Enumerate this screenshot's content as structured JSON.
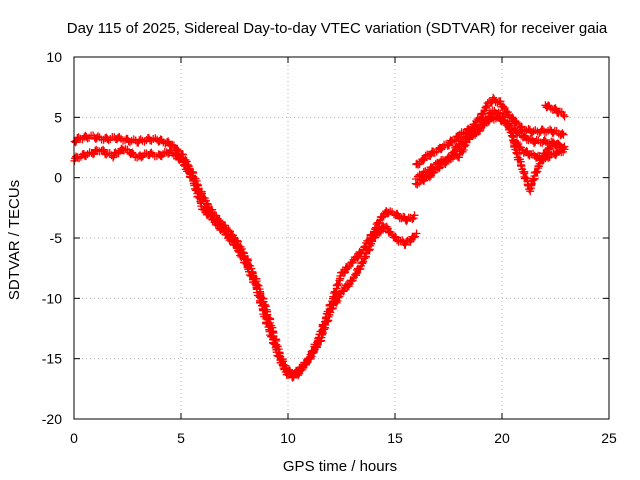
{
  "chart_data": {
    "type": "scatter",
    "title": "Day 115 of 2025, Sidereal Day-to-day VTEC variation (SDTVAR) for receiver gaia",
    "xlabel": "GPS time / hours",
    "ylabel": "SDTVAR / TECUs",
    "xlim": [
      0,
      25
    ],
    "ylim": [
      -20,
      10
    ],
    "x_ticks": [
      0,
      5,
      10,
      15,
      20,
      25
    ],
    "y_ticks": [
      -20,
      -15,
      -10,
      -5,
      0,
      5,
      10
    ],
    "x_tick_labels": [
      "0",
      "5",
      "10",
      "15",
      "20",
      "25"
    ],
    "y_tick_labels": [
      "-20",
      "-15",
      "-10",
      "-5",
      "0",
      "5",
      "10"
    ],
    "grid": true,
    "marker": "+",
    "color": "#ff0000",
    "series": [
      {
        "name": "track-upper",
        "x": [
          0.0,
          0.3,
          0.8,
          1.5,
          2.0,
          2.5,
          3.0,
          3.5,
          4.0,
          4.5,
          5.0,
          5.5,
          6.0,
          6.5,
          7.0,
          7.5,
          8.0,
          8.5,
          9.0,
          9.5,
          9.8,
          10.0,
          10.3,
          10.6,
          11.0,
          11.5,
          12.0,
          12.5,
          13.0,
          13.5,
          14.0,
          14.3,
          14.6,
          15.0,
          15.3,
          15.6,
          15.9
        ],
        "y": [
          3.0,
          3.3,
          3.4,
          3.2,
          3.3,
          3.1,
          3.0,
          3.2,
          3.1,
          2.8,
          2.0,
          0.5,
          -1.5,
          -3.0,
          -4.0,
          -5.0,
          -6.5,
          -8.5,
          -11.0,
          -14.0,
          -15.5,
          -16.0,
          -16.2,
          -15.8,
          -15.0,
          -13.0,
          -10.5,
          -8.0,
          -7.0,
          -6.0,
          -4.5,
          -3.5,
          -2.8,
          -3.0,
          -3.3,
          -3.5,
          -3.2
        ]
      },
      {
        "name": "track-lower",
        "x": [
          0.0,
          0.3,
          0.8,
          1.2,
          1.8,
          2.3,
          3.0,
          3.5,
          4.0,
          4.5,
          5.0,
          5.5,
          6.0,
          6.5,
          7.0,
          7.5,
          8.0,
          8.5,
          9.0,
          9.5,
          9.8,
          10.0,
          10.3,
          10.6,
          11.0,
          11.5,
          12.0,
          12.5,
          13.0,
          13.5,
          14.0,
          14.5,
          15.0,
          15.5,
          16.0
        ],
        "y": [
          1.5,
          1.8,
          2.0,
          2.3,
          1.8,
          2.4,
          1.7,
          2.0,
          1.8,
          2.2,
          1.5,
          0.0,
          -2.5,
          -3.5,
          -4.5,
          -5.5,
          -7.0,
          -9.0,
          -12.0,
          -14.5,
          -15.8,
          -16.3,
          -16.5,
          -16.0,
          -15.0,
          -13.5,
          -11.0,
          -9.5,
          -8.5,
          -7.0,
          -5.0,
          -4.0,
          -5.0,
          -5.5,
          -4.7
        ]
      },
      {
        "name": "track-evening-upper",
        "x": [
          16.0,
          16.5,
          17.0,
          17.5,
          18.0,
          18.5,
          19.0,
          19.3,
          19.6,
          19.9,
          20.2,
          20.5,
          21.0,
          21.5,
          22.0,
          22.5,
          22.9
        ],
        "y": [
          1.0,
          1.8,
          2.3,
          2.8,
          3.5,
          4.0,
          5.0,
          6.0,
          6.5,
          6.2,
          5.5,
          4.8,
          4.0,
          3.8,
          3.9,
          3.8,
          3.5
        ]
      },
      {
        "name": "track-evening-lower",
        "x": [
          16.0,
          16.5,
          17.0,
          17.5,
          18.0,
          18.5,
          19.0,
          19.5,
          20.0,
          20.5,
          21.0,
          21.5,
          22.0,
          22.5,
          22.9
        ],
        "y": [
          -0.5,
          0.0,
          0.8,
          1.5,
          2.8,
          3.6,
          4.2,
          5.0,
          4.8,
          4.0,
          3.4,
          3.0,
          3.0,
          2.8,
          2.5
        ]
      },
      {
        "name": "track-evening-third",
        "x": [
          16.0,
          16.5,
          17.0,
          17.5,
          18.0,
          18.5,
          19.0,
          19.5,
          20.0,
          20.3,
          20.6,
          21.0,
          21.5,
          22.0,
          22.5,
          22.9
        ],
        "y": [
          0.0,
          0.5,
          1.2,
          1.6,
          1.8,
          3.4,
          4.0,
          5.5,
          5.2,
          4.2,
          3.0,
          2.2,
          1.8,
          1.6,
          2.0,
          2.3
        ]
      },
      {
        "name": "track-evening-dip",
        "x": [
          20.5,
          20.8,
          21.0,
          21.3,
          21.6,
          22.0,
          22.4,
          22.8
        ],
        "y": [
          3.0,
          1.5,
          0.5,
          -1.0,
          0.5,
          2.0,
          2.8,
          2.6
        ]
      },
      {
        "name": "track-late",
        "x": [
          22.0,
          22.3,
          22.6,
          22.9
        ],
        "y": [
          6.0,
          5.8,
          5.5,
          5.2
        ]
      }
    ]
  }
}
